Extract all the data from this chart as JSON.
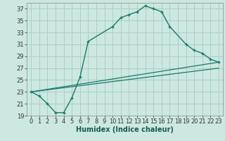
{
  "xlabel": "Humidex (Indice chaleur)",
  "bg_color": "#cce8e0",
  "grid_color": "#aacfc8",
  "line_color": "#1a7a6a",
  "xlim": [
    -0.5,
    23.5
  ],
  "ylim": [
    19,
    38
  ],
  "xticks": [
    0,
    1,
    2,
    3,
    4,
    5,
    6,
    7,
    8,
    9,
    10,
    11,
    12,
    13,
    14,
    15,
    16,
    17,
    18,
    19,
    20,
    21,
    22,
    23
  ],
  "yticks": [
    19,
    21,
    23,
    25,
    27,
    29,
    31,
    33,
    35,
    37
  ],
  "curve1_x": [
    0,
    1,
    2,
    3,
    4,
    5,
    6,
    7,
    10,
    11,
    12,
    13,
    14,
    15,
    16,
    17,
    19,
    20,
    21,
    22,
    23
  ],
  "curve1_y": [
    23,
    22.3,
    21.0,
    19.5,
    19.5,
    22.0,
    25.5,
    31.5,
    34.0,
    35.5,
    36.0,
    36.5,
    37.5,
    37.0,
    36.5,
    34.0,
    31.0,
    30.0,
    29.5,
    28.5,
    28.0
  ],
  "line2_x": [
    0,
    23
  ],
  "line2_y": [
    23,
    28.0
  ],
  "line3_x": [
    0,
    23
  ],
  "line3_y": [
    23,
    27.0
  ],
  "fontsize_xlabel": 7,
  "fontsize_ticks": 6
}
